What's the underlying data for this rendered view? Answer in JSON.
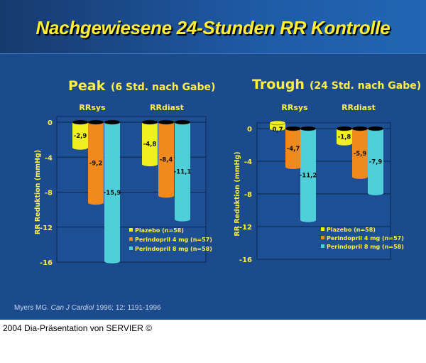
{
  "slide": {
    "title": "Nachgewiesene 24-Stunden RR Kontrolle",
    "citation_author": "Myers MG. ",
    "citation_journal": "Can J Cardiol",
    "citation_rest": " 1996; 12: 1191-1996",
    "footer": "2004 Dia-Präsentation von SERVIER ©"
  },
  "chart_data": [
    {
      "type": "bar",
      "title": "Peak",
      "subtitle": "(6 Std. nach Gabe)",
      "ylabel": "RR Reduktion (mmHg)",
      "ylim": [
        -16,
        0
      ],
      "yticks": [
        "0",
        "-4",
        "-8",
        "-12",
        "-16"
      ],
      "ytick_values": [
        0,
        -4,
        -8,
        -12,
        -16
      ],
      "grid": true,
      "legend": "bottom-right",
      "categories": [
        "RRsys",
        "RRdiast"
      ],
      "series": [
        {
          "name": "Plazebo (n=58)",
          "color": "#f0f020",
          "values": [
            -2.9,
            -4.8
          ],
          "labels": [
            "-2,9",
            "-4,8"
          ]
        },
        {
          "name": "Perindopril 4 mg (n=57)",
          "color": "#f08a1c",
          "values": [
            -9.2,
            -8.4
          ],
          "labels": [
            "-9,2",
            "-8,4"
          ]
        },
        {
          "name": "Perindopril 8 mg (n=58)",
          "color": "#4fd0d8",
          "values": [
            -15.9,
            -11.1
          ],
          "labels": [
            "-15,9",
            "-11,1"
          ]
        }
      ]
    },
    {
      "type": "bar",
      "title": "Trough",
      "subtitle": "(24 Std. nach Gabe)",
      "ylabel": "RR Reduktion (mmHg)",
      "ylim": [
        -16,
        0
      ],
      "yticks": [
        "0",
        "-4",
        "-8",
        "-12",
        "-16"
      ],
      "ytick_values": [
        0,
        -4,
        -8,
        -12,
        -16
      ],
      "grid": true,
      "legend": "bottom-right",
      "categories": [
        "RRsys",
        "RRdiast"
      ],
      "series": [
        {
          "name": "Plazebo (n=58)",
          "color": "#f0f020",
          "values": [
            0.7,
            -1.8
          ],
          "labels": [
            "0,7",
            "-1,8"
          ]
        },
        {
          "name": "Perindopril 4 mg (n=57)",
          "color": "#f08a1c",
          "values": [
            -4.7,
            -5.9
          ],
          "labels": [
            "-4,7",
            "-5,9"
          ]
        },
        {
          "name": "Perindopril 8 mg (n=58)",
          "color": "#4fd0d8",
          "values": [
            -11.2,
            -7.9
          ],
          "labels": [
            "-11,2",
            "-7,9"
          ]
        }
      ]
    }
  ]
}
